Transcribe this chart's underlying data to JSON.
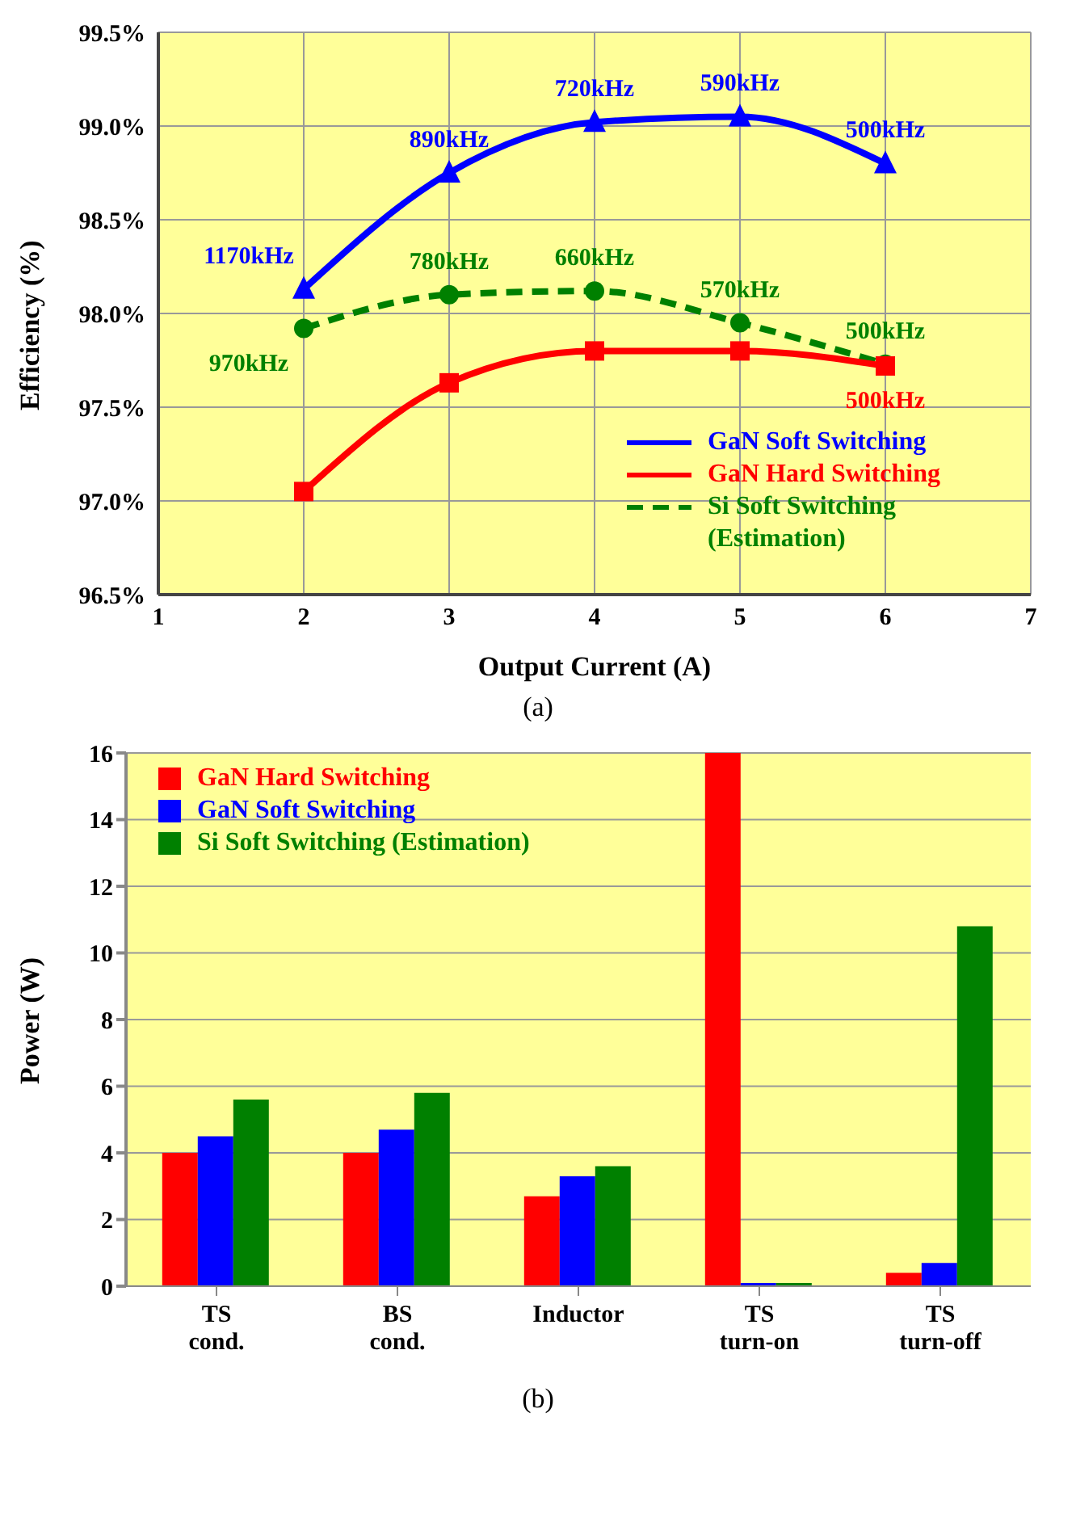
{
  "chart_data": [
    {
      "type": "line",
      "xlabel": "Output Current (A)",
      "ylabel": "Efficiency (%)",
      "x": [
        2,
        3,
        4,
        5,
        6
      ],
      "xlim": [
        1,
        7
      ],
      "xticks": [
        1,
        2,
        3,
        4,
        5,
        6,
        7
      ],
      "ylim": [
        96.5,
        99.5
      ],
      "yticks": [
        {
          "value": 96.5,
          "label": "96.5%"
        },
        {
          "value": 97,
          "label": "97.0%"
        },
        {
          "value": 97.5,
          "label": "97.5%"
        },
        {
          "value": 98,
          "label": "98.0%"
        },
        {
          "value": 98.5,
          "label": "98.5%"
        },
        {
          "value": 99,
          "label": "99.0%"
        },
        {
          "value": 99.5,
          "label": "99.5%"
        }
      ],
      "grid": true,
      "legend": "bottom right",
      "annotations": [
        {
          "text": "1170kHz",
          "x": 2,
          "y": 98.13
        },
        {
          "text": "890kHz",
          "x": 3,
          "y": 98.75
        },
        {
          "text": "720kHz",
          "x": 4,
          "y": 99.02
        },
        {
          "text": "590kHz",
          "x": 5,
          "y": 99.05
        },
        {
          "text": "500kHz",
          "x": 6,
          "y": 98.8
        },
        {
          "text": "970kHz",
          "x": 2,
          "y": 97.92
        },
        {
          "text": "780kHz",
          "x": 3,
          "y": 98.1
        },
        {
          "text": "660kHz",
          "x": 4,
          "y": 98.12
        },
        {
          "text": "570kHz",
          "x": 5,
          "y": 97.95
        },
        {
          "text": "500kHz",
          "x": 6,
          "y": 97.73
        },
        {
          "text": "500kHz",
          "x": 6,
          "y": 97.72
        },
        "(a)"
      ],
      "series": [
        {
          "name": "GaN Soft Switching",
          "color": "#0000ff",
          "marker": "triangle",
          "line_style": "solid",
          "values": [
            98.13,
            98.75,
            99.02,
            99.05,
            98.8
          ]
        },
        {
          "name": "GaN Hard Switching",
          "color": "#ff0000",
          "marker": "square",
          "line_style": "solid",
          "values": [
            97.05,
            97.63,
            97.8,
            97.8,
            97.72
          ]
        },
        {
          "name": "Si Soft Switching (Estimation)",
          "color": "#008000",
          "marker": "circle",
          "line_style": "dashed",
          "values": [
            97.92,
            98.1,
            98.12,
            97.95,
            97.73
          ]
        }
      ]
    },
    {
      "type": "bar",
      "ylabel": "Power (W)",
      "categories": [
        "TS cond.",
        "BS cond.",
        "Inductor",
        "TS turn-on",
        "TS turn-off"
      ],
      "ylim": [
        0,
        16
      ],
      "yticks": [
        0,
        2,
        4,
        6,
        8,
        10,
        12,
        14,
        16
      ],
      "grid": "y",
      "legend": "top left",
      "annotations": [
        "(b)"
      ],
      "series": [
        {
          "name": "GaN Hard Switching",
          "color": "#ff0000",
          "values": [
            4.0,
            4.0,
            2.7,
            16.0,
            0.4
          ]
        },
        {
          "name": "GaN Soft Switching",
          "color": "#0000ff",
          "values": [
            4.5,
            4.7,
            3.3,
            0.1,
            0.7
          ]
        },
        {
          "name": "Si Soft Switching (Estimation)",
          "color": "#008000",
          "values": [
            5.6,
            5.8,
            3.6,
            0.1,
            10.8
          ]
        }
      ]
    }
  ]
}
